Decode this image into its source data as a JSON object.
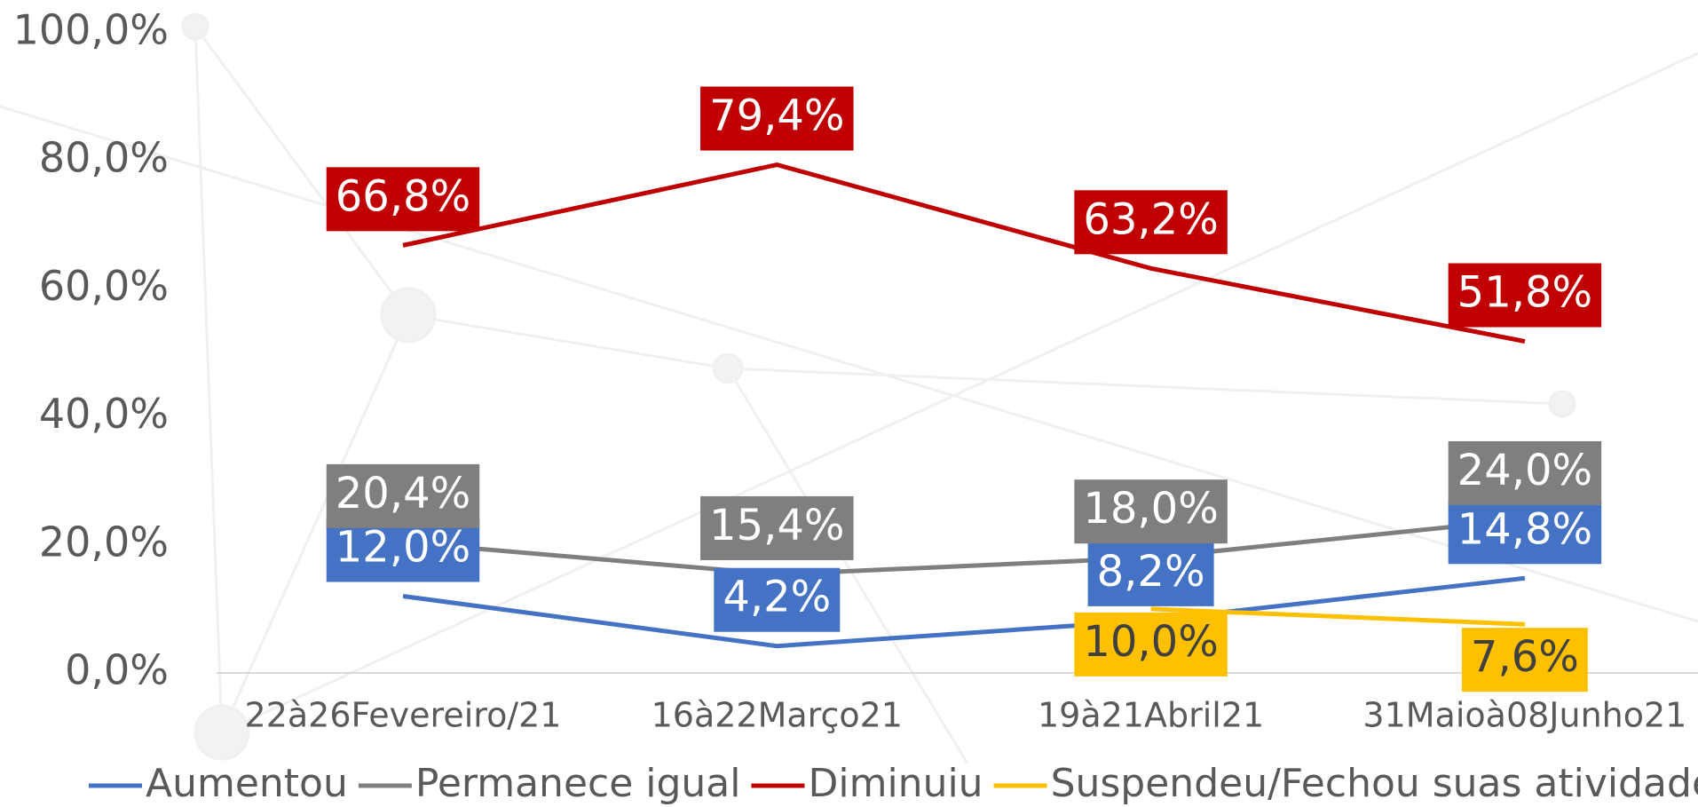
{
  "chart_data": {
    "type": "line",
    "categories": [
      "22à26Fevereiro/21",
      "16à22Março21",
      "19à21Abril21",
      "31Maioà08Junho21"
    ],
    "series": [
      {
        "name": "Aumentou",
        "color": "#4472c4",
        "values": [
          12.0,
          4.2,
          8.2,
          14.8
        ],
        "value_labels": [
          "12,0%",
          "4,2%",
          "8,2%",
          "14,8%"
        ]
      },
      {
        "name": "Permanece igual",
        "color": "#7f7f7f",
        "values": [
          20.4,
          15.4,
          18.0,
          24.0
        ],
        "value_labels": [
          "20,4%",
          "15,4%",
          "18,0%",
          "24,0%"
        ]
      },
      {
        "name": "Diminuiu",
        "color": "#c00000",
        "values": [
          66.8,
          79.4,
          63.2,
          51.8
        ],
        "value_labels": [
          "66,8%",
          "79,4%",
          "63,2%",
          "51,8%"
        ]
      },
      {
        "name": "Suspendeu/Fechou suas atividades",
        "color": "#ffc000",
        "values": [
          null,
          null,
          10.0,
          7.6
        ],
        "value_labels": [
          null,
          null,
          "10,0%",
          "7,6%"
        ]
      }
    ],
    "ylim": [
      0,
      100
    ],
    "yticks": [
      {
        "value": 0,
        "label": "0,0%"
      },
      {
        "value": 20,
        "label": "20,0%"
      },
      {
        "value": 40,
        "label": "40,0%"
      },
      {
        "value": 60,
        "label": "60,0%"
      },
      {
        "value": 80,
        "label": "80,0%"
      },
      {
        "value": 100,
        "label": "100,0%"
      }
    ],
    "legend": "bottom"
  }
}
